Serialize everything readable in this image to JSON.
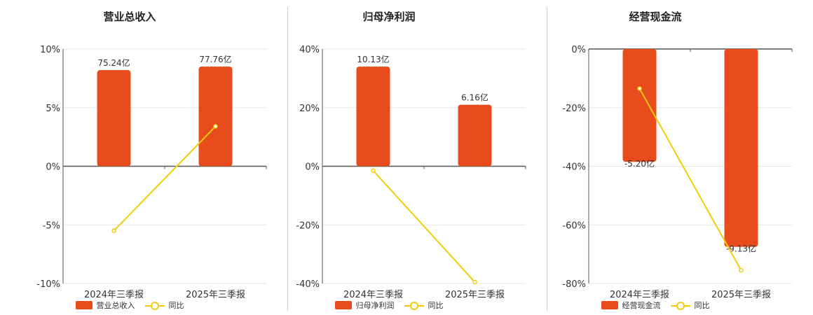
{
  "colors": {
    "bar": "#e84c1c",
    "line": "#f2cc0c",
    "grid": "#e6e6e6",
    "axis": "#555555"
  },
  "chart_data": [
    {
      "type": "bar",
      "title": "营业总收入",
      "categories": [
        "2024年三季报",
        "2025年三季报"
      ],
      "series": [
        {
          "name": "营业总收入",
          "type": "bar",
          "values": [
            8.2,
            8.5
          ],
          "labels": [
            "75.24亿",
            "77.76亿"
          ]
        },
        {
          "name": "同比",
          "type": "line",
          "values": [
            -5.5,
            3.4
          ]
        }
      ],
      "y_ticks": [
        "10%",
        "5%",
        "0%",
        "-5%",
        "-10%"
      ],
      "ylim": [
        -10,
        10
      ],
      "grid": true,
      "legend": "bottom"
    },
    {
      "type": "bar",
      "title": "归母净利润",
      "categories": [
        "2024年三季报",
        "2025年三季报"
      ],
      "series": [
        {
          "name": "归母净利润",
          "type": "bar",
          "values": [
            34,
            21
          ],
          "labels": [
            "10.13亿",
            "6.16亿"
          ]
        },
        {
          "name": "同比",
          "type": "line",
          "values": [
            -1.5,
            -39.5
          ]
        }
      ],
      "y_ticks": [
        "40%",
        "20%",
        "0%",
        "-20%",
        "-40%"
      ],
      "ylim": [
        -40,
        40
      ],
      "grid": true,
      "legend": "bottom"
    },
    {
      "type": "bar",
      "title": "经营现金流",
      "categories": [
        "2024年三季报",
        "2025年三季报"
      ],
      "series": [
        {
          "name": "经营现金流",
          "type": "bar",
          "values": [
            -38.5,
            -67.5
          ],
          "labels": [
            "-5.20亿",
            "-9.13亿"
          ]
        },
        {
          "name": "同比",
          "type": "line",
          "values": [
            -13.5,
            -75.5
          ]
        }
      ],
      "y_ticks": [
        "0%",
        "-20%",
        "-40%",
        "-60%",
        "-80%"
      ],
      "ylim": [
        -80,
        0
      ],
      "grid": true,
      "legend": "bottom"
    }
  ]
}
